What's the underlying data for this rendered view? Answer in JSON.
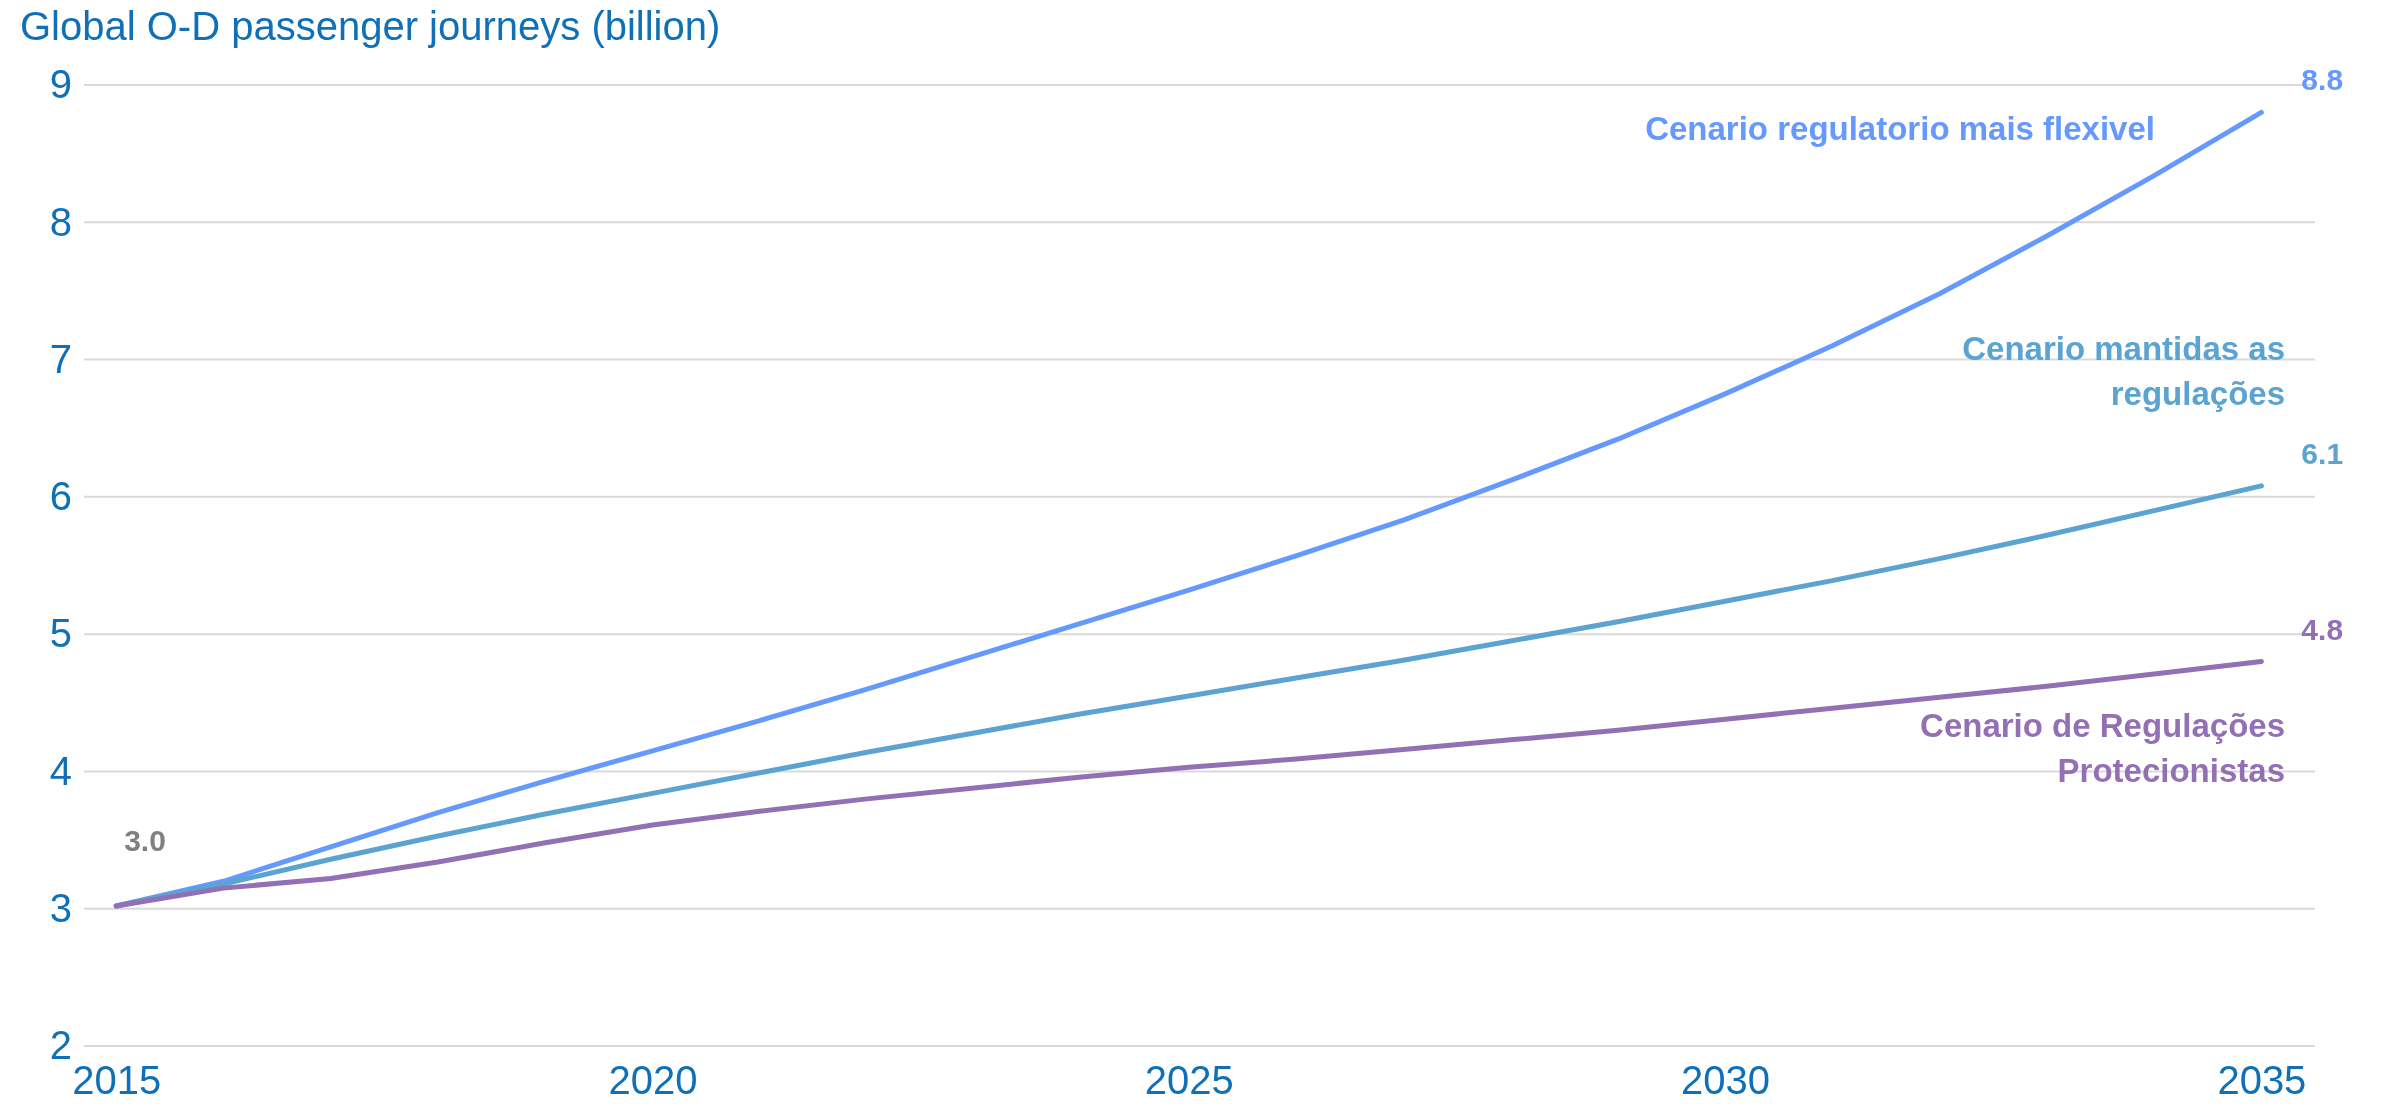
{
  "chart_data": {
    "type": "line",
    "title": "Global O-D passenger journeys (billion)",
    "x": [
      2015,
      2016,
      2017,
      2018,
      2019,
      2020,
      2021,
      2022,
      2023,
      2024,
      2025,
      2026,
      2027,
      2028,
      2029,
      2030,
      2031,
      2032,
      2033,
      2034,
      2035
    ],
    "series": [
      {
        "name": "Cenario regulatorio mais flexivel",
        "color": "#6699ff",
        "values": [
          3.02,
          3.2,
          3.45,
          3.7,
          3.93,
          4.15,
          4.37,
          4.6,
          4.84,
          5.08,
          5.32,
          5.57,
          5.83,
          6.12,
          6.42,
          6.75,
          7.1,
          7.48,
          7.9,
          8.34,
          8.8
        ],
        "value_labels": [
          null,
          null,
          null,
          null,
          null,
          null,
          null,
          null,
          null,
          null,
          null,
          null,
          null,
          null,
          null,
          null,
          null,
          null,
          null,
          null,
          "8.8"
        ]
      },
      {
        "name": "Cenario mantidas as regulações",
        "color": "#5ba3d0",
        "values": [
          3.02,
          3.18,
          3.36,
          3.53,
          3.69,
          3.84,
          3.99,
          4.14,
          4.28,
          4.42,
          4.55,
          4.68,
          4.81,
          4.95,
          5.09,
          5.24,
          5.39,
          5.55,
          5.72,
          5.9,
          6.08
        ],
        "value_labels": [
          null,
          null,
          null,
          null,
          null,
          null,
          null,
          null,
          null,
          null,
          null,
          null,
          null,
          null,
          null,
          null,
          null,
          null,
          null,
          null,
          "6.1"
        ]
      },
      {
        "name": "Cenario de Regulações Protecionistas",
        "color": "#9370b4",
        "values": [
          3.02,
          3.15,
          3.22,
          3.34,
          3.48,
          3.61,
          3.71,
          3.8,
          3.88,
          3.96,
          4.03,
          4.09,
          4.16,
          4.23,
          4.3,
          4.38,
          4.46,
          4.54,
          4.62,
          4.71,
          4.8
        ],
        "value_labels": [
          null,
          null,
          null,
          null,
          null,
          null,
          null,
          null,
          null,
          null,
          null,
          null,
          null,
          null,
          null,
          null,
          null,
          null,
          null,
          null,
          "4.8"
        ]
      }
    ],
    "annotations": [
      {
        "text": "3.0",
        "x": 2015,
        "y": 3.0
      }
    ],
    "xlim": [
      2014.7,
      2035.5
    ],
    "xticks": [
      2015,
      2020,
      2025,
      2030,
      2035
    ],
    "ylim": [
      2,
      9
    ],
    "yticks": [
      2,
      3,
      4,
      5,
      6,
      7,
      8,
      9
    ],
    "grid": "y",
    "legend": false,
    "marker": "none",
    "line_style": "solid"
  }
}
